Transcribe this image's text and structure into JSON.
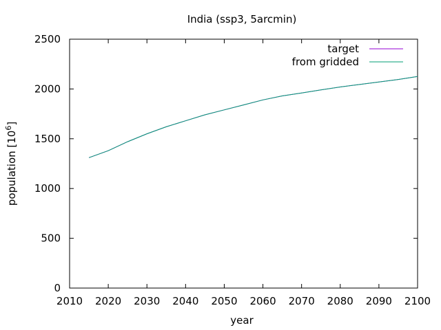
{
  "chart_data": {
    "type": "line",
    "title": "India (ssp3, 5arcmin)",
    "xlabel": "year",
    "ylabel_prefix": "population [10",
    "ylabel_exp": "6",
    "ylabel_suffix": "]",
    "xlim": [
      2010,
      2100
    ],
    "ylim": [
      0,
      2500
    ],
    "xticks": [
      2010,
      2020,
      2030,
      2040,
      2050,
      2060,
      2070,
      2080,
      2090,
      2100
    ],
    "yticks": [
      0,
      500,
      1000,
      1500,
      2000,
      2500
    ],
    "legend_position": "top-right",
    "grid": false,
    "series": [
      {
        "name": "target",
        "color": "#9400d3",
        "x": [
          2015,
          2020,
          2025,
          2030,
          2035,
          2040,
          2045,
          2050,
          2055,
          2060,
          2065,
          2070,
          2075,
          2080,
          2085,
          2090,
          2095,
          2100
        ],
        "y": [
          1310,
          1380,
          1470,
          1550,
          1620,
          1680,
          1740,
          1790,
          1840,
          1890,
          1930,
          1960,
          1990,
          2020,
          2045,
          2070,
          2095,
          2125
        ]
      },
      {
        "name": "from gridded",
        "color": "#009e73",
        "x": [
          2015,
          2020,
          2025,
          2030,
          2035,
          2040,
          2045,
          2050,
          2055,
          2060,
          2065,
          2070,
          2075,
          2080,
          2085,
          2090,
          2095,
          2100
        ],
        "y": [
          1310,
          1380,
          1470,
          1550,
          1620,
          1680,
          1740,
          1790,
          1840,
          1890,
          1930,
          1960,
          1990,
          2020,
          2045,
          2070,
          2095,
          2125
        ]
      }
    ]
  }
}
